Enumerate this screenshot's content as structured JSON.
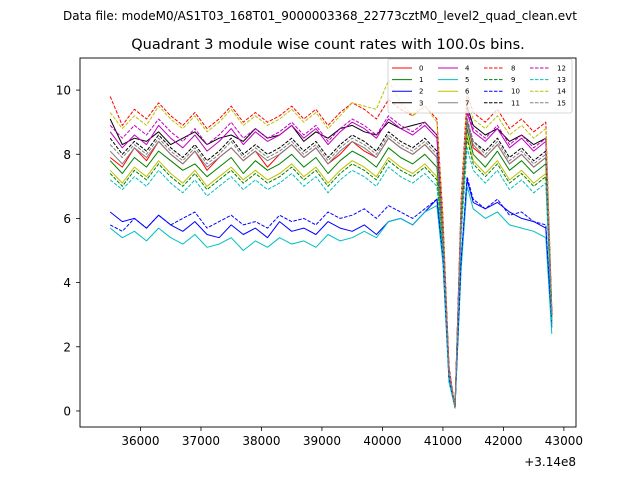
{
  "suptitle": "Data file: modeM0/AS1T03_168T01_9000003368_22773cztM0_level2_quad_clean.evt",
  "chart_data": {
    "type": "line",
    "title": "Quadrant 3 module wise count rates with 100.0s bins.",
    "xlabel": "",
    "ylabel": "",
    "offset_text": "+3.14e8",
    "x_offset": 314000000,
    "xlim": [
      35000,
      43200
    ],
    "ylim": [
      -0.5,
      11.0
    ],
    "x_ticks": [
      36000,
      37000,
      38000,
      39000,
      40000,
      41000,
      42000,
      43000
    ],
    "y_ticks": [
      0,
      2,
      4,
      6,
      8,
      10
    ],
    "x": [
      35500,
      35700,
      35900,
      36100,
      36300,
      36500,
      36700,
      36900,
      37100,
      37300,
      37500,
      37700,
      37900,
      38100,
      38300,
      38500,
      38700,
      38900,
      39100,
      39300,
      39500,
      39700,
      39900,
      40100,
      40300,
      40500,
      40700,
      40900,
      41000,
      41100,
      41200,
      41300,
      41400,
      41500,
      41700,
      41900,
      42100,
      42300,
      42500,
      42700,
      42800
    ],
    "legend_position": "upper right",
    "series": [
      {
        "name": "0",
        "color": "#ff0000",
        "dash": "solid",
        "values": [
          7.9,
          7.6,
          8.2,
          7.8,
          8.4,
          8.0,
          7.7,
          8.1,
          7.5,
          7.9,
          8.2,
          7.8,
          8.1,
          7.6,
          8.0,
          8.3,
          7.9,
          8.2,
          7.7,
          8.0,
          8.4,
          8.1,
          7.9,
          8.5,
          8.2,
          8.0,
          8.3,
          7.9,
          5.5,
          1.3,
          0.1,
          6.0,
          9.0,
          8.2,
          7.9,
          8.3,
          7.7,
          8.0,
          7.6,
          7.9,
          3.0
        ]
      },
      {
        "name": "1",
        "color": "#008000",
        "dash": "solid",
        "values": [
          7.8,
          7.4,
          7.9,
          7.6,
          8.1,
          7.8,
          7.5,
          7.7,
          7.3,
          7.6,
          7.9,
          7.4,
          7.8,
          7.5,
          7.7,
          8.0,
          7.6,
          7.9,
          7.4,
          7.8,
          8.1,
          7.9,
          7.6,
          8.2,
          7.9,
          7.7,
          8.0,
          7.6,
          5.3,
          1.2,
          0.1,
          5.9,
          8.8,
          8.0,
          7.6,
          8.1,
          7.5,
          7.8,
          7.4,
          7.7,
          2.9
        ]
      },
      {
        "name": "2",
        "color": "#0000ff",
        "dash": "solid",
        "values": [
          6.2,
          5.9,
          6.0,
          5.7,
          6.1,
          5.8,
          5.6,
          5.9,
          5.5,
          5.4,
          5.8,
          5.5,
          5.7,
          5.4,
          5.9,
          5.6,
          5.7,
          5.5,
          5.9,
          5.7,
          5.6,
          5.8,
          5.5,
          5.9,
          6.0,
          5.8,
          6.2,
          6.6,
          4.9,
          1.0,
          0.1,
          4.6,
          7.2,
          6.5,
          6.3,
          6.5,
          6.2,
          6.0,
          5.9,
          5.7,
          2.6
        ]
      },
      {
        "name": "3",
        "color": "#000000",
        "dash": "solid",
        "values": [
          9.1,
          8.3,
          8.5,
          8.4,
          8.7,
          8.3,
          8.5,
          8.7,
          8.3,
          8.5,
          8.6,
          8.4,
          8.8,
          8.5,
          8.6,
          8.9,
          8.4,
          8.7,
          8.5,
          8.8,
          8.9,
          8.7,
          8.6,
          9.0,
          8.8,
          8.9,
          9.0,
          8.6,
          5.8,
          1.3,
          0.1,
          6.3,
          9.5,
          8.9,
          8.6,
          8.8,
          8.4,
          8.6,
          8.3,
          8.5,
          3.1
        ]
      },
      {
        "name": "4",
        "color": "#bf00bf",
        "dash": "solid",
        "values": [
          8.7,
          8.2,
          8.6,
          8.3,
          8.9,
          8.5,
          8.2,
          8.6,
          8.1,
          8.4,
          8.8,
          8.3,
          8.7,
          8.4,
          8.6,
          8.9,
          8.5,
          8.8,
          8.3,
          8.7,
          9.0,
          8.8,
          8.5,
          9.1,
          8.8,
          8.6,
          8.9,
          8.5,
          5.7,
          1.3,
          0.1,
          6.2,
          9.3,
          8.7,
          8.4,
          8.8,
          8.2,
          8.5,
          8.1,
          8.4,
          3.0
        ]
      },
      {
        "name": "5",
        "color": "#00bfbf",
        "dash": "solid",
        "values": [
          5.7,
          5.4,
          5.6,
          5.3,
          5.7,
          5.4,
          5.2,
          5.5,
          5.1,
          5.2,
          5.4,
          5.0,
          5.3,
          5.1,
          5.4,
          5.2,
          5.3,
          5.1,
          5.5,
          5.3,
          5.4,
          5.6,
          5.4,
          5.9,
          6.0,
          5.8,
          6.2,
          6.4,
          4.6,
          0.9,
          0.1,
          4.4,
          7.0,
          6.3,
          6.0,
          6.2,
          5.8,
          5.7,
          5.6,
          5.4,
          2.4
        ]
      },
      {
        "name": "6",
        "color": "#bfbf00",
        "dash": "solid",
        "values": [
          7.5,
          7.1,
          7.6,
          7.3,
          7.8,
          7.4,
          7.1,
          7.5,
          7.0,
          7.3,
          7.6,
          7.2,
          7.5,
          7.2,
          7.4,
          7.7,
          7.3,
          7.6,
          7.1,
          7.5,
          7.8,
          7.6,
          7.3,
          7.9,
          7.6,
          7.4,
          7.7,
          7.3,
          5.1,
          1.1,
          0.1,
          5.7,
          8.6,
          7.8,
          7.4,
          7.8,
          7.2,
          7.5,
          7.1,
          7.4,
          2.8
        ]
      },
      {
        "name": "7",
        "color": "#808080",
        "dash": "solid",
        "values": [
          8.1,
          7.7,
          8.2,
          7.9,
          8.4,
          8.0,
          7.7,
          8.1,
          7.6,
          7.9,
          8.2,
          7.8,
          8.1,
          7.8,
          8.0,
          8.3,
          7.9,
          8.2,
          7.7,
          8.1,
          8.4,
          8.2,
          7.9,
          8.5,
          8.2,
          8.0,
          8.3,
          7.9,
          5.5,
          1.2,
          0.1,
          6.0,
          9.0,
          8.3,
          7.9,
          8.3,
          7.7,
          8.0,
          7.6,
          7.9,
          2.9
        ]
      },
      {
        "name": "8",
        "color": "#ff0000",
        "dash": "dashed",
        "values": [
          9.8,
          8.9,
          9.4,
          9.1,
          9.6,
          9.2,
          8.9,
          9.3,
          8.8,
          9.1,
          9.5,
          9.0,
          9.3,
          9.0,
          9.2,
          9.5,
          9.1,
          9.4,
          8.9,
          9.3,
          9.6,
          9.4,
          9.1,
          9.7,
          9.4,
          9.2,
          9.5,
          9.1,
          6.1,
          1.4,
          0.1,
          6.6,
          9.9,
          9.3,
          9.0,
          9.4,
          8.8,
          9.1,
          8.7,
          9.0,
          3.2
        ]
      },
      {
        "name": "9",
        "color": "#008000",
        "dash": "dashed",
        "values": [
          7.4,
          7.0,
          7.5,
          7.2,
          7.7,
          7.3,
          7.0,
          7.4,
          6.9,
          7.2,
          7.5,
          7.1,
          7.4,
          7.1,
          7.3,
          7.6,
          7.2,
          7.5,
          7.0,
          7.4,
          7.7,
          7.5,
          7.2,
          7.8,
          7.5,
          7.3,
          7.6,
          7.2,
          5.0,
          1.1,
          0.1,
          5.6,
          8.5,
          7.7,
          7.3,
          7.7,
          7.1,
          7.4,
          7.0,
          7.3,
          2.8
        ]
      },
      {
        "name": "10",
        "color": "#0000ff",
        "dash": "dashed",
        "values": [
          5.8,
          5.6,
          6.0,
          5.7,
          6.1,
          5.8,
          6.0,
          6.2,
          5.7,
          5.9,
          6.1,
          5.8,
          5.9,
          5.7,
          6.1,
          5.9,
          6.0,
          5.8,
          6.2,
          6.0,
          6.1,
          6.3,
          6.0,
          6.4,
          6.2,
          6.0,
          6.3,
          6.6,
          4.8,
          1.0,
          0.1,
          4.7,
          7.3,
          6.6,
          6.3,
          6.6,
          6.1,
          6.2,
          5.9,
          5.8,
          2.7
        ]
      },
      {
        "name": "11",
        "color": "#000000",
        "dash": "dashed",
        "values": [
          8.5,
          8.0,
          8.4,
          8.1,
          8.6,
          8.2,
          7.9,
          8.3,
          7.8,
          8.1,
          8.5,
          8.0,
          8.3,
          8.0,
          8.2,
          8.5,
          8.1,
          8.4,
          7.9,
          8.3,
          8.6,
          8.4,
          8.1,
          8.7,
          8.4,
          8.2,
          8.5,
          8.1,
          5.6,
          1.2,
          0.1,
          6.1,
          9.1,
          8.4,
          8.1,
          8.5,
          7.9,
          8.2,
          7.8,
          8.1,
          3.0
        ]
      },
      {
        "name": "12",
        "color": "#bf00bf",
        "dash": "dashed",
        "values": [
          8.9,
          8.5,
          8.9,
          8.6,
          9.1,
          8.7,
          8.4,
          8.8,
          8.3,
          8.6,
          9.0,
          8.5,
          8.8,
          8.5,
          8.7,
          9.0,
          8.6,
          8.9,
          8.4,
          8.8,
          9.1,
          8.9,
          8.6,
          9.2,
          8.9,
          8.7,
          9.0,
          8.6,
          5.8,
          1.3,
          0.1,
          6.3,
          9.4,
          8.8,
          8.5,
          8.9,
          8.3,
          8.6,
          8.2,
          8.5,
          3.1
        ]
      },
      {
        "name": "13",
        "color": "#00bfbf",
        "dash": "dashed",
        "values": [
          7.2,
          6.9,
          7.3,
          7.0,
          7.5,
          7.1,
          6.8,
          7.2,
          6.7,
          7.0,
          7.3,
          6.9,
          7.2,
          6.9,
          7.1,
          7.4,
          7.0,
          7.3,
          6.8,
          7.2,
          7.5,
          7.3,
          7.0,
          7.6,
          7.3,
          7.1,
          7.4,
          7.0,
          4.9,
          1.0,
          0.1,
          5.4,
          8.2,
          7.5,
          7.1,
          7.5,
          6.9,
          7.2,
          6.8,
          7.1,
          2.7
        ]
      },
      {
        "name": "14",
        "color": "#bfbf00",
        "dash": "dashed",
        "values": [
          9.3,
          8.8,
          9.2,
          8.9,
          9.5,
          9.1,
          8.8,
          9.2,
          8.7,
          9.0,
          9.4,
          8.9,
          9.2,
          8.9,
          9.1,
          9.4,
          9.0,
          9.3,
          8.8,
          9.2,
          9.6,
          9.5,
          9.4,
          10.3,
          9.6,
          9.2,
          9.5,
          9.0,
          6.0,
          1.3,
          0.1,
          6.4,
          9.7,
          9.1,
          8.8,
          9.2,
          8.6,
          8.9,
          8.5,
          8.8,
          3.1
        ]
      },
      {
        "name": "15",
        "color": "#808080",
        "dash": "dashed",
        "values": [
          8.3,
          7.9,
          8.3,
          8.0,
          8.5,
          8.1,
          7.8,
          8.2,
          7.7,
          8.0,
          8.4,
          7.9,
          8.2,
          7.9,
          8.1,
          8.4,
          8.0,
          8.3,
          7.8,
          8.2,
          8.5,
          8.3,
          8.0,
          8.6,
          8.3,
          8.1,
          8.4,
          8.0,
          5.6,
          1.2,
          0.1,
          6.1,
          9.1,
          8.4,
          8.0,
          8.4,
          7.8,
          8.1,
          7.7,
          8.0,
          3.0
        ]
      }
    ]
  }
}
